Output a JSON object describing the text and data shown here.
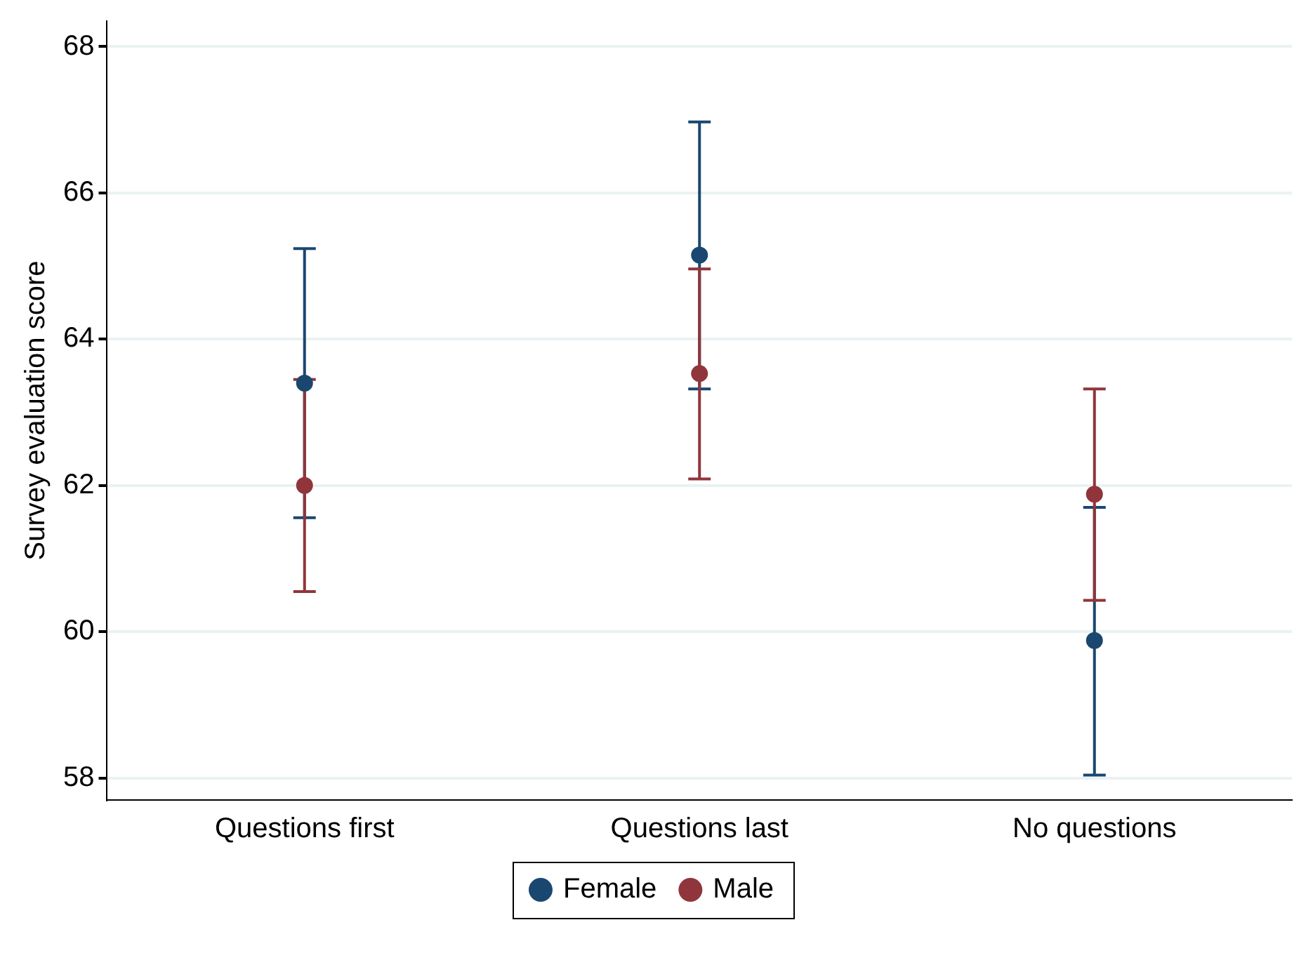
{
  "chart_data": {
    "type": "scatter",
    "ylabel": "Survey evaluation score",
    "categories": [
      "Questions first",
      "Questions last",
      "No questions"
    ],
    "series": [
      {
        "name": "Female",
        "color": "#1a476f",
        "values": [
          63.4,
          65.15,
          59.88
        ],
        "errors": [
          [
            61.56,
            65.24
          ],
          [
            63.32,
            66.97
          ],
          [
            58.04,
            61.7
          ]
        ]
      },
      {
        "name": "Male",
        "color": "#90353b",
        "values": [
          62.0,
          63.53,
          61.88
        ],
        "errors": [
          [
            60.55,
            63.45
          ],
          [
            62.09,
            64.96
          ],
          [
            60.43,
            63.32
          ]
        ]
      }
    ],
    "ylim": [
      57.7,
      68.35
    ],
    "yticks": [
      58,
      60,
      62,
      64,
      66,
      68
    ],
    "grid": "y",
    "legend": "bottom",
    "marker": "circle"
  }
}
